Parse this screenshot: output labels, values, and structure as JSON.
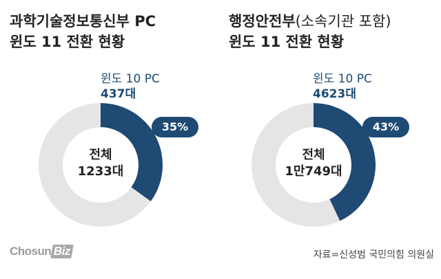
{
  "chart_data": [
    {
      "type": "pie",
      "title_line1": "과학기술정보통신부 PC",
      "title_line1_suffix": "",
      "title_line2": "윈도 11 전환 현황",
      "series": [
        {
          "name": "윈도 10 PC",
          "count_label": "437대",
          "value": 35,
          "value_label": "35%"
        }
      ],
      "center_label": "전체",
      "total_label": "1233대",
      "colors": {
        "highlight": "#1e4a74",
        "remainder": "#e5e5e5"
      }
    },
    {
      "type": "pie",
      "title_line1": "행정안전부",
      "title_line1_suffix": "(소속기관 포함)",
      "title_line2": "윈도 11 전환 현황",
      "series": [
        {
          "name": "윈도 10 PC",
          "count_label": "4623대",
          "value": 43,
          "value_label": "43%"
        }
      ],
      "center_label": "전체",
      "total_label": "1만749대",
      "colors": {
        "highlight": "#1e4a74",
        "remainder": "#e5e5e5"
      }
    }
  ],
  "brand": {
    "logo_main": "Chosun",
    "logo_suffix": "Biz"
  },
  "source": "자료=신성범 국민의힘 의원실"
}
